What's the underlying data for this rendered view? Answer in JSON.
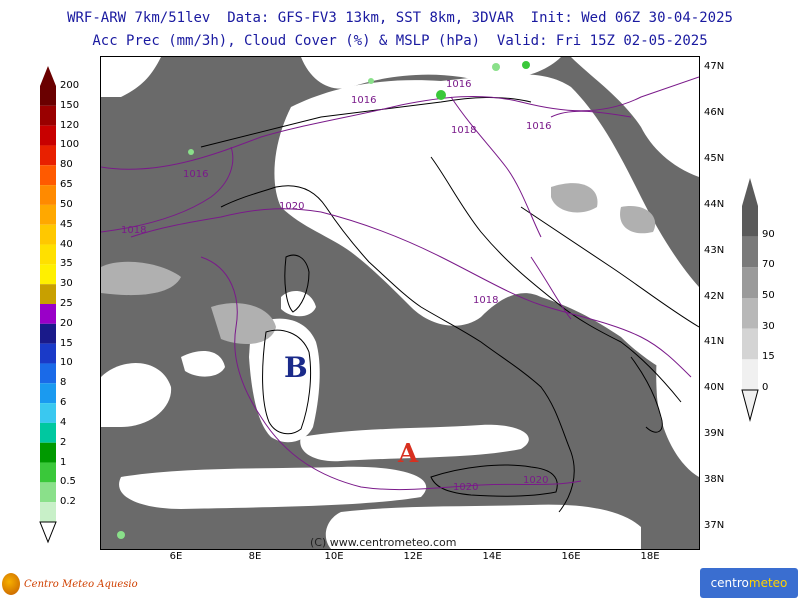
{
  "header": {
    "line1": "WRF-ARW 7km/51lev  Data: GFS-FV3 13km, SST 8km, 3DVAR  Init: Wed 06Z 30-04-2025",
    "line2": "Acc Prec (mm/3h), Cloud Cover (%) & MSLP (hPa)  Valid: Fri 15Z 02-05-2025"
  },
  "map": {
    "lat_labels": [
      "47N",
      "46N",
      "45N",
      "44N",
      "43N",
      "42N",
      "41N",
      "40N",
      "39N",
      "38N",
      "37N"
    ],
    "lon_labels": [
      "6E",
      "8E",
      "10E",
      "12E",
      "14E",
      "16E",
      "18E"
    ],
    "pressure_labels": [
      "1016",
      "1016",
      "1018",
      "1016",
      "1016",
      "1020",
      "1018",
      "1018",
      "1020",
      "1020"
    ],
    "low_marker": "B",
    "high_marker": "A",
    "copyright": "(C) www.centrometeo.com",
    "colors": {
      "cloud": "#6a6a6a",
      "clear": "#ffffff",
      "isobar": "#7a1a8a",
      "low": "#1a2a8a",
      "high": "#d83020"
    }
  },
  "precip_legend": {
    "values": [
      "200",
      "150",
      "120",
      "100",
      "80",
      "65",
      "50",
      "45",
      "40",
      "35",
      "30",
      "25",
      "20",
      "15",
      "10",
      "8",
      "6",
      "4",
      "2",
      "1",
      "0.5",
      "0.2"
    ],
    "colors": [
      "#6a0000",
      "#9a0000",
      "#c80000",
      "#e82000",
      "#ff5a00",
      "#ff8a00",
      "#ffa800",
      "#ffc800",
      "#ffe000",
      "#fff000",
      "#c8a000",
      "#9a00c8",
      "#1a1a8a",
      "#1a3ac8",
      "#1a6ae8",
      "#1a9af0",
      "#3ac8f0",
      "#00c8a0",
      "#009a00",
      "#3ac83a",
      "#8ae08a",
      "#c8f0c8"
    ]
  },
  "cloud_legend": {
    "values": [
      "90",
      "70",
      "50",
      "30",
      "15",
      "0"
    ],
    "colors": [
      "#5a5a5a",
      "#7a7a7a",
      "#9a9a9a",
      "#b8b8b8",
      "#d4d4d4",
      "#f0f0f0"
    ]
  },
  "footer": {
    "left_text": "Centro Meteo Aquesio",
    "right_text_a": "centro",
    "right_text_b": "meteo"
  }
}
